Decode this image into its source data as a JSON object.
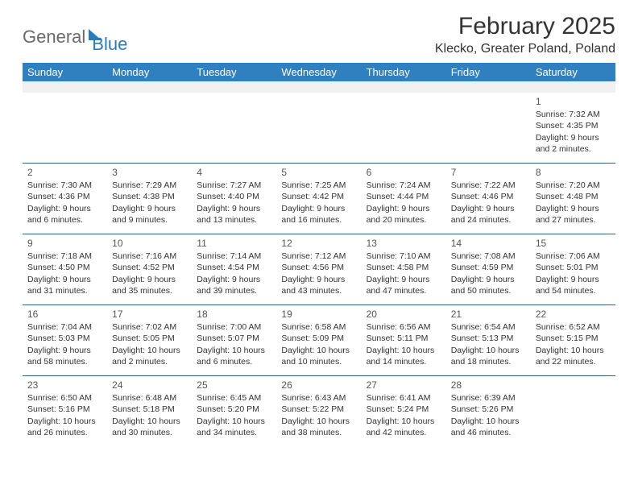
{
  "logo": {
    "general": "General",
    "blue": "Blue"
  },
  "title": "February 2025",
  "location": "Klecko, Greater Poland, Poland",
  "colors": {
    "header_bg": "#3080c0",
    "header_text": "#ffffff",
    "row_border": "#3a5f7d",
    "text": "#333333",
    "logo_gray": "#6a6a6a",
    "logo_blue": "#2b7bbf",
    "blank_bg": "#f0f0f0"
  },
  "weekdays": [
    "Sunday",
    "Monday",
    "Tuesday",
    "Wednesday",
    "Thursday",
    "Friday",
    "Saturday"
  ],
  "weeks": [
    [
      null,
      null,
      null,
      null,
      null,
      null,
      {
        "n": "1",
        "sr": "Sunrise: 7:32 AM",
        "ss": "Sunset: 4:35 PM",
        "dl": "Daylight: 9 hours and 2 minutes."
      }
    ],
    [
      {
        "n": "2",
        "sr": "Sunrise: 7:30 AM",
        "ss": "Sunset: 4:36 PM",
        "dl": "Daylight: 9 hours and 6 minutes."
      },
      {
        "n": "3",
        "sr": "Sunrise: 7:29 AM",
        "ss": "Sunset: 4:38 PM",
        "dl": "Daylight: 9 hours and 9 minutes."
      },
      {
        "n": "4",
        "sr": "Sunrise: 7:27 AM",
        "ss": "Sunset: 4:40 PM",
        "dl": "Daylight: 9 hours and 13 minutes."
      },
      {
        "n": "5",
        "sr": "Sunrise: 7:25 AM",
        "ss": "Sunset: 4:42 PM",
        "dl": "Daylight: 9 hours and 16 minutes."
      },
      {
        "n": "6",
        "sr": "Sunrise: 7:24 AM",
        "ss": "Sunset: 4:44 PM",
        "dl": "Daylight: 9 hours and 20 minutes."
      },
      {
        "n": "7",
        "sr": "Sunrise: 7:22 AM",
        "ss": "Sunset: 4:46 PM",
        "dl": "Daylight: 9 hours and 24 minutes."
      },
      {
        "n": "8",
        "sr": "Sunrise: 7:20 AM",
        "ss": "Sunset: 4:48 PM",
        "dl": "Daylight: 9 hours and 27 minutes."
      }
    ],
    [
      {
        "n": "9",
        "sr": "Sunrise: 7:18 AM",
        "ss": "Sunset: 4:50 PM",
        "dl": "Daylight: 9 hours and 31 minutes."
      },
      {
        "n": "10",
        "sr": "Sunrise: 7:16 AM",
        "ss": "Sunset: 4:52 PM",
        "dl": "Daylight: 9 hours and 35 minutes."
      },
      {
        "n": "11",
        "sr": "Sunrise: 7:14 AM",
        "ss": "Sunset: 4:54 PM",
        "dl": "Daylight: 9 hours and 39 minutes."
      },
      {
        "n": "12",
        "sr": "Sunrise: 7:12 AM",
        "ss": "Sunset: 4:56 PM",
        "dl": "Daylight: 9 hours and 43 minutes."
      },
      {
        "n": "13",
        "sr": "Sunrise: 7:10 AM",
        "ss": "Sunset: 4:58 PM",
        "dl": "Daylight: 9 hours and 47 minutes."
      },
      {
        "n": "14",
        "sr": "Sunrise: 7:08 AM",
        "ss": "Sunset: 4:59 PM",
        "dl": "Daylight: 9 hours and 50 minutes."
      },
      {
        "n": "15",
        "sr": "Sunrise: 7:06 AM",
        "ss": "Sunset: 5:01 PM",
        "dl": "Daylight: 9 hours and 54 minutes."
      }
    ],
    [
      {
        "n": "16",
        "sr": "Sunrise: 7:04 AM",
        "ss": "Sunset: 5:03 PM",
        "dl": "Daylight: 9 hours and 58 minutes."
      },
      {
        "n": "17",
        "sr": "Sunrise: 7:02 AM",
        "ss": "Sunset: 5:05 PM",
        "dl": "Daylight: 10 hours and 2 minutes."
      },
      {
        "n": "18",
        "sr": "Sunrise: 7:00 AM",
        "ss": "Sunset: 5:07 PM",
        "dl": "Daylight: 10 hours and 6 minutes."
      },
      {
        "n": "19",
        "sr": "Sunrise: 6:58 AM",
        "ss": "Sunset: 5:09 PM",
        "dl": "Daylight: 10 hours and 10 minutes."
      },
      {
        "n": "20",
        "sr": "Sunrise: 6:56 AM",
        "ss": "Sunset: 5:11 PM",
        "dl": "Daylight: 10 hours and 14 minutes."
      },
      {
        "n": "21",
        "sr": "Sunrise: 6:54 AM",
        "ss": "Sunset: 5:13 PM",
        "dl": "Daylight: 10 hours and 18 minutes."
      },
      {
        "n": "22",
        "sr": "Sunrise: 6:52 AM",
        "ss": "Sunset: 5:15 PM",
        "dl": "Daylight: 10 hours and 22 minutes."
      }
    ],
    [
      {
        "n": "23",
        "sr": "Sunrise: 6:50 AM",
        "ss": "Sunset: 5:16 PM",
        "dl": "Daylight: 10 hours and 26 minutes."
      },
      {
        "n": "24",
        "sr": "Sunrise: 6:48 AM",
        "ss": "Sunset: 5:18 PM",
        "dl": "Daylight: 10 hours and 30 minutes."
      },
      {
        "n": "25",
        "sr": "Sunrise: 6:45 AM",
        "ss": "Sunset: 5:20 PM",
        "dl": "Daylight: 10 hours and 34 minutes."
      },
      {
        "n": "26",
        "sr": "Sunrise: 6:43 AM",
        "ss": "Sunset: 5:22 PM",
        "dl": "Daylight: 10 hours and 38 minutes."
      },
      {
        "n": "27",
        "sr": "Sunrise: 6:41 AM",
        "ss": "Sunset: 5:24 PM",
        "dl": "Daylight: 10 hours and 42 minutes."
      },
      {
        "n": "28",
        "sr": "Sunrise: 6:39 AM",
        "ss": "Sunset: 5:26 PM",
        "dl": "Daylight: 10 hours and 46 minutes."
      },
      null
    ]
  ]
}
